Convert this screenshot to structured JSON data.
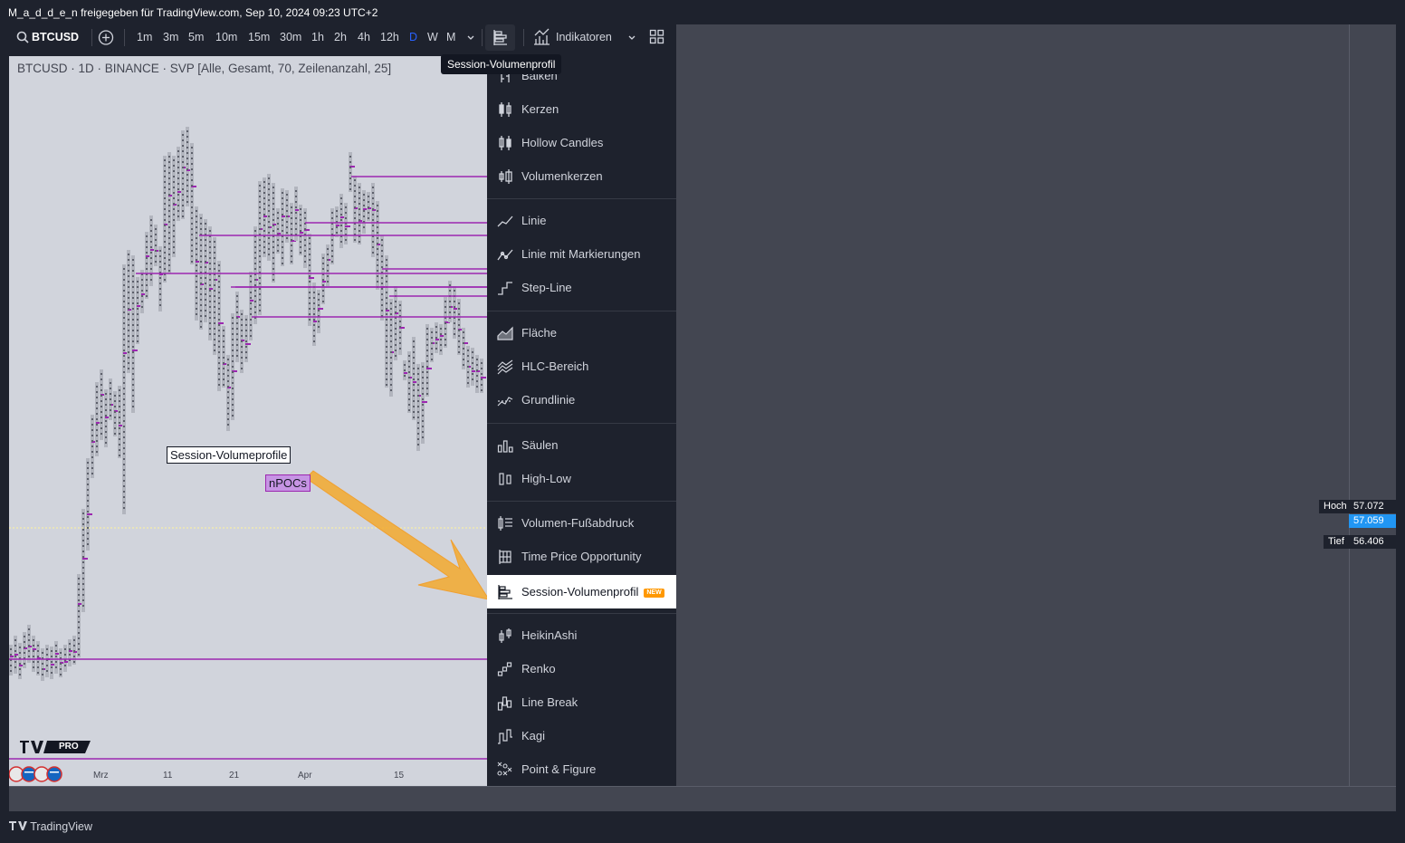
{
  "header": {
    "share_text": "M_a_d_d_e_n freigegeben für TradingView.com, Sep 10, 2024 09:23 UTC+2"
  },
  "toolbar": {
    "symbol": "BTCUSD",
    "timeframes": [
      "1m",
      "3m",
      "5m",
      "10m",
      "15m",
      "30m",
      "1h",
      "2h",
      "4h",
      "12h",
      "D",
      "W",
      "M"
    ],
    "active_timeframe": "D",
    "indicators_label": "Indikatoren"
  },
  "chart": {
    "legend": "BTCUSD · 1D · BINANCE · SVP [Alle, Gesamt, 70, Zeilenanzahl, 25]",
    "annotation_box": "Session-Volumeprofile",
    "annotation_npocs": "nPOCs",
    "x_axis_labels": [
      "Mrz",
      "11",
      "21",
      "Apr",
      "15"
    ],
    "logo_badge": "PRO",
    "colors": {
      "background": "#d1d4dc",
      "candle": "#b2b5be",
      "poc_line": "#9c27b0",
      "arrow": "#f5a623"
    }
  },
  "tooltip": "Session-Volumenprofil",
  "menu": {
    "items": [
      {
        "label": "Balken",
        "icon": "bars-icon"
      },
      {
        "label": "Kerzen",
        "icon": "candles-icon"
      },
      {
        "label": "Hollow Candles",
        "icon": "hollow-candles-icon"
      },
      {
        "label": "Volumenkerzen",
        "icon": "volume-candles-icon"
      },
      {
        "label": "Linie",
        "icon": "line-icon"
      },
      {
        "label": "Linie mit Markierungen",
        "icon": "line-markers-icon"
      },
      {
        "label": "Step-Line",
        "icon": "step-line-icon"
      },
      {
        "label": "Fläche",
        "icon": "area-icon"
      },
      {
        "label": "HLC-Bereich",
        "icon": "hlc-area-icon"
      },
      {
        "label": "Grundlinie",
        "icon": "baseline-icon"
      },
      {
        "label": "Säulen",
        "icon": "columns-icon"
      },
      {
        "label": "High-Low",
        "icon": "high-low-icon"
      },
      {
        "label": "Volumen-Fußabdruck",
        "icon": "volume-footprint-icon"
      },
      {
        "label": "Time Price Opportunity",
        "icon": "tpo-icon"
      },
      {
        "label": "Session-Volumenprofil",
        "icon": "session-volume-profile-icon",
        "badge": "NEW",
        "selected": true
      },
      {
        "label": "HeikinAshi",
        "icon": "heikin-ashi-icon"
      },
      {
        "label": "Renko",
        "icon": "renko-icon"
      },
      {
        "label": "Line Break",
        "icon": "line-break-icon"
      },
      {
        "label": "Kagi",
        "icon": "kagi-icon"
      },
      {
        "label": "Point & Figure",
        "icon": "point-figure-icon"
      }
    ]
  },
  "price_labels": {
    "high_label": "Hoch",
    "high_value": "57.072",
    "current_value": "57.059",
    "low_label": "Tief",
    "low_value": "56.406"
  },
  "footer": {
    "brand": "TradingView"
  }
}
